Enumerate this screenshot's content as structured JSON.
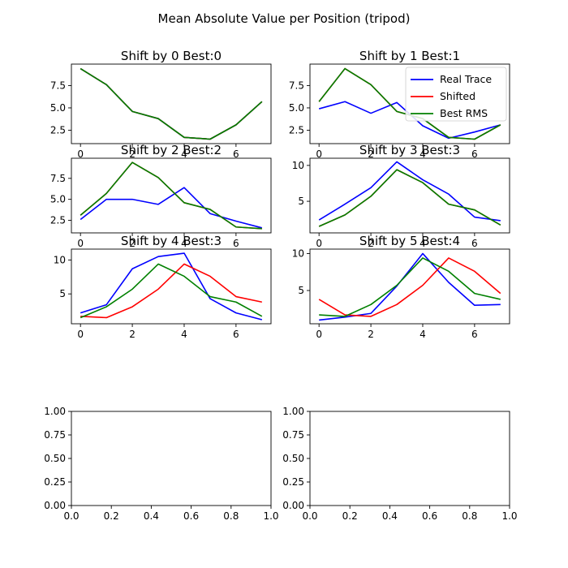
{
  "figure": {
    "title": "Mean Absolute Value per Position (tripod)"
  },
  "colors": {
    "real": "#0000ff",
    "shifted": "#ff0000",
    "best": "#008000",
    "axes": "#000000"
  },
  "legend": {
    "placement": "upper-right",
    "entries": [
      {
        "key": "real",
        "label": "Real Trace"
      },
      {
        "key": "shifted",
        "label": "Shifted"
      },
      {
        "key": "best",
        "label": "Best RMS"
      }
    ]
  },
  "chart_data": [
    {
      "type": "line",
      "title": "Shift by 0 Best:0",
      "xlim": [
        -0.35,
        7.35
      ],
      "ylim": [
        1.0,
        9.9
      ],
      "xticks": [
        0,
        2,
        4,
        6
      ],
      "yticks": [
        2.5,
        5.0,
        7.5
      ],
      "xticklabels": [
        "0",
        "2",
        "4",
        "6"
      ],
      "yticklabels": [
        "2.5",
        "5.0",
        "7.5"
      ],
      "x": [
        0,
        1,
        2,
        3,
        4,
        5,
        6,
        7
      ],
      "series": [
        {
          "key": "real",
          "name": "Real Trace",
          "values": [
            9.4,
            7.6,
            4.6,
            3.8,
            1.7,
            1.5,
            3.1,
            5.7
          ]
        },
        {
          "key": "shifted",
          "name": "Shifted",
          "values": [
            9.4,
            7.6,
            4.6,
            3.8,
            1.7,
            1.5,
            3.1,
            5.7
          ]
        },
        {
          "key": "best",
          "name": "Best RMS",
          "values": [
            9.4,
            7.6,
            4.6,
            3.8,
            1.7,
            1.5,
            3.1,
            5.7
          ]
        }
      ]
    },
    {
      "type": "line",
      "title": "Shift by 1 Best:1",
      "legend": true,
      "xlim": [
        -0.35,
        7.35
      ],
      "ylim": [
        1.0,
        9.9
      ],
      "xticks": [
        0,
        2,
        4,
        6
      ],
      "yticks": [
        2.5,
        5.0,
        7.5
      ],
      "xticklabels": [
        "0",
        "2",
        "4",
        "6"
      ],
      "yticklabels": [
        "2.5",
        "5.0",
        "7.5"
      ],
      "x": [
        0,
        1,
        2,
        3,
        4,
        5,
        6,
        7
      ],
      "series": [
        {
          "key": "real",
          "name": "Real Trace",
          "values": [
            4.9,
            5.7,
            4.4,
            5.6,
            3.0,
            1.6,
            2.3,
            3.1
          ]
        },
        {
          "key": "shifted",
          "name": "Shifted",
          "values": [
            5.7,
            9.4,
            7.6,
            4.6,
            3.8,
            1.7,
            1.5,
            3.1
          ]
        },
        {
          "key": "best",
          "name": "Best RMS",
          "values": [
            5.7,
            9.4,
            7.6,
            4.6,
            3.8,
            1.7,
            1.5,
            3.1
          ]
        }
      ]
    },
    {
      "type": "line",
      "title": "Shift by 2 Best:2",
      "xlim": [
        -0.35,
        7.35
      ],
      "ylim": [
        1.0,
        9.9
      ],
      "xticks": [
        0,
        2,
        4,
        6
      ],
      "yticks": [
        2.5,
        5.0,
        7.5
      ],
      "xticklabels": [
        "0",
        "2",
        "4",
        "6"
      ],
      "yticklabels": [
        "2.5",
        "5.0",
        "7.5"
      ],
      "x": [
        0,
        1,
        2,
        3,
        4,
        5,
        6,
        7
      ],
      "series": [
        {
          "key": "real",
          "name": "Real Trace",
          "values": [
            2.6,
            5.0,
            5.0,
            4.4,
            6.4,
            3.3,
            2.4,
            1.6
          ]
        },
        {
          "key": "shifted",
          "name": "Shifted",
          "values": [
            3.1,
            5.7,
            9.4,
            7.6,
            4.6,
            3.8,
            1.7,
            1.5
          ]
        },
        {
          "key": "best",
          "name": "Best RMS",
          "values": [
            3.1,
            5.7,
            9.4,
            7.6,
            4.6,
            3.8,
            1.7,
            1.5
          ]
        }
      ]
    },
    {
      "type": "line",
      "title": "Shift by 3 Best:3",
      "xlim": [
        -0.35,
        7.35
      ],
      "ylim": [
        0.6,
        11.0
      ],
      "xticks": [
        0,
        2,
        4,
        6
      ],
      "yticks": [
        5,
        10
      ],
      "xticklabels": [
        "0",
        "2",
        "4",
        "6"
      ],
      "yticklabels": [
        "5",
        "10"
      ],
      "x": [
        0,
        1,
        2,
        3,
        4,
        5,
        6,
        7
      ],
      "series": [
        {
          "key": "real",
          "name": "Real Trace",
          "values": [
            2.4,
            4.6,
            6.9,
            10.5,
            8.0,
            6.0,
            2.8,
            2.3
          ]
        },
        {
          "key": "shifted",
          "name": "Shifted",
          "values": [
            1.5,
            3.1,
            5.7,
            9.4,
            7.6,
            4.6,
            3.8,
            1.7
          ]
        },
        {
          "key": "best",
          "name": "Best RMS",
          "values": [
            1.5,
            3.1,
            5.7,
            9.4,
            7.6,
            4.6,
            3.8,
            1.7
          ]
        }
      ]
    },
    {
      "type": "line",
      "title": "Shift by 4 Best:3",
      "xlim": [
        -0.35,
        7.35
      ],
      "ylim": [
        0.6,
        11.6
      ],
      "xticks": [
        0,
        2,
        4,
        6
      ],
      "yticks": [
        5,
        10
      ],
      "xticklabels": [
        "0",
        "2",
        "4",
        "6"
      ],
      "yticklabels": [
        "5",
        "10"
      ],
      "x": [
        0,
        1,
        2,
        3,
        4,
        5,
        6,
        7
      ],
      "series": [
        {
          "key": "real",
          "name": "Real Trace",
          "values": [
            2.2,
            3.4,
            8.7,
            10.5,
            11.0,
            4.3,
            2.2,
            1.2
          ]
        },
        {
          "key": "shifted",
          "name": "Shifted",
          "values": [
            1.7,
            1.5,
            3.1,
            5.7,
            9.4,
            7.6,
            4.6,
            3.8
          ]
        },
        {
          "key": "best",
          "name": "Best RMS",
          "values": [
            1.5,
            3.1,
            5.7,
            9.4,
            7.6,
            4.6,
            3.8,
            1.7
          ]
        }
      ]
    },
    {
      "type": "line",
      "title": "Shift by 5 Best:4",
      "xlim": [
        -0.35,
        7.35
      ],
      "ylim": [
        0.5,
        10.6
      ],
      "xticks": [
        0,
        2,
        4,
        6
      ],
      "yticks": [
        5,
        10
      ],
      "xticklabels": [
        "0",
        "2",
        "4",
        "6"
      ],
      "yticklabels": [
        "5",
        "10"
      ],
      "x": [
        0,
        1,
        2,
        3,
        4,
        5,
        6,
        7
      ],
      "series": [
        {
          "key": "real",
          "name": "Real Trace",
          "values": [
            1.0,
            1.4,
            1.9,
            5.6,
            10.0,
            6.1,
            3.0,
            3.1
          ]
        },
        {
          "key": "shifted",
          "name": "Shifted",
          "values": [
            3.8,
            1.7,
            1.5,
            3.1,
            5.7,
            9.4,
            7.6,
            4.6
          ]
        },
        {
          "key": "best",
          "name": "Best RMS",
          "values": [
            1.7,
            1.5,
            3.1,
            5.7,
            9.4,
            7.6,
            4.6,
            3.8
          ]
        }
      ]
    },
    {
      "type": "line",
      "title": "",
      "xlim": [
        0,
        1
      ],
      "ylim": [
        0,
        1
      ],
      "xticks": [
        0,
        0.2,
        0.4,
        0.6,
        0.8,
        1.0
      ],
      "yticks": [
        0,
        0.25,
        0.5,
        0.75,
        1.0
      ],
      "xticklabels": [
        "0.0",
        "0.2",
        "0.4",
        "0.6",
        "0.8",
        "1.0"
      ],
      "yticklabels": [
        "0.00",
        "0.25",
        "0.50",
        "0.75",
        "1.00"
      ],
      "x": [],
      "series": []
    },
    {
      "type": "line",
      "title": "",
      "xlim": [
        0,
        1
      ],
      "ylim": [
        0,
        1
      ],
      "xticks": [
        0,
        0.2,
        0.4,
        0.6,
        0.8,
        1.0
      ],
      "yticks": [
        0,
        0.25,
        0.5,
        0.75,
        1.0
      ],
      "xticklabels": [
        "0.0",
        "0.2",
        "0.4",
        "0.6",
        "0.8",
        "1.0"
      ],
      "yticklabels": [
        "0.00",
        "0.25",
        "0.50",
        "0.75",
        "1.00"
      ],
      "x": [],
      "series": []
    }
  ]
}
